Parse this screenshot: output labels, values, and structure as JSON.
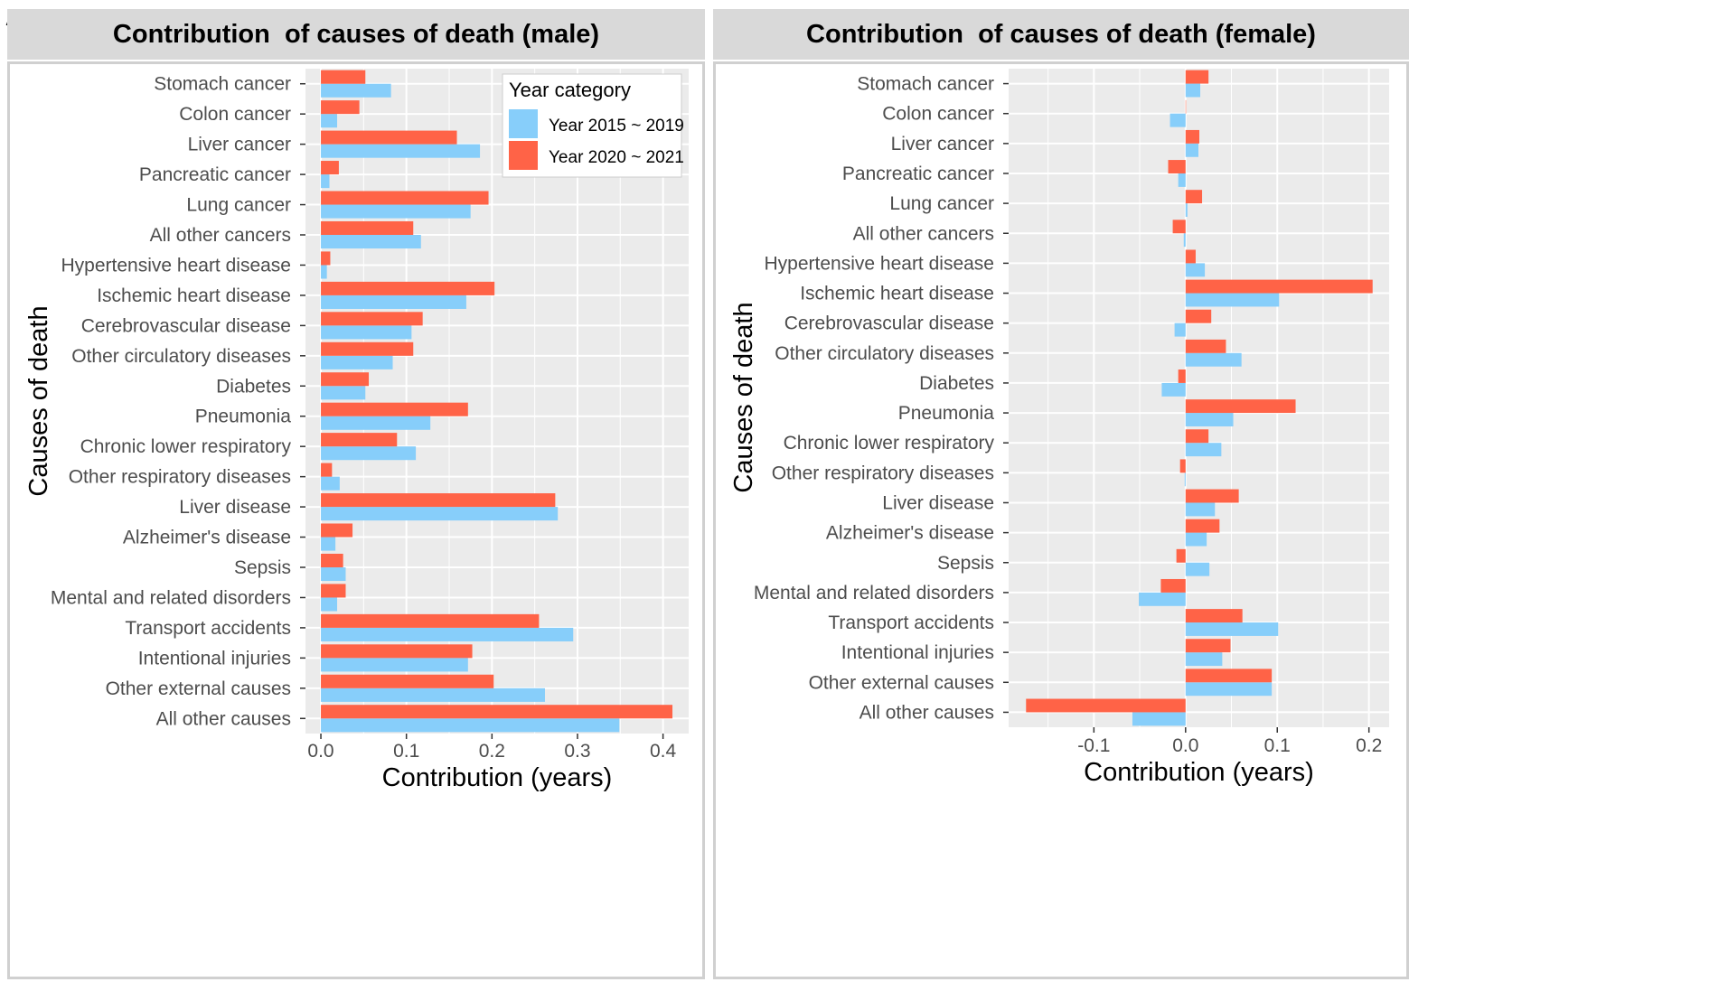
{
  "colors": {
    "series1": "#87CEFA",
    "series2": "#FF6347",
    "panel_bg": "#EBEBEB",
    "grid": "#FFFFFF"
  },
  "chart_data": [
    {
      "panel": "A",
      "type": "bar",
      "orientation": "horizontal",
      "title": "Contribution  of causes of death (male)",
      "xlabel": "Contribution (years)",
      "ylabel": "Causes of death",
      "xlim": [
        -0.018,
        0.43
      ],
      "xticks": [
        0.0,
        0.1,
        0.2,
        0.3,
        0.4
      ],
      "xtick_labels": [
        "0.0",
        "0.1",
        "0.2",
        "0.3",
        "0.4"
      ],
      "legend": {
        "title": "Year category",
        "position": "top-right",
        "entries": [
          "Year 2015 ~ 2019",
          "Year 2020 ~ 2021"
        ]
      },
      "categories": [
        "Stomach cancer",
        "Colon cancer",
        "Liver cancer",
        "Pancreatic cancer",
        "Lung cancer",
        "All other cancers",
        "Hypertensive heart disease",
        "Ischemic heart disease",
        "Cerebrovascular disease",
        "Other circulatory diseases",
        "Diabetes",
        "Pneumonia",
        "Chronic lower respiratory",
        "Other respiratory diseases",
        "Liver disease",
        "Alzheimer's disease",
        "Sepsis",
        "Mental and related disorders",
        "Transport accidents",
        "Intentional injuries",
        "Other external causes",
        "All other causes"
      ],
      "series": [
        {
          "name": "Year 2015 ~ 2019",
          "values": [
            0.082,
            0.019,
            0.186,
            0.01,
            0.175,
            0.117,
            0.007,
            0.17,
            0.106,
            0.084,
            0.052,
            0.128,
            0.111,
            0.022,
            0.277,
            0.017,
            0.029,
            0.019,
            0.295,
            0.172,
            0.262,
            0.349
          ]
        },
        {
          "name": "Year 2020 ~ 2021",
          "values": [
            0.052,
            0.045,
            0.159,
            0.021,
            0.196,
            0.108,
            0.011,
            0.203,
            0.119,
            0.108,
            0.056,
            0.172,
            0.089,
            0.013,
            0.274,
            0.037,
            0.026,
            0.029,
            0.255,
            0.177,
            0.202,
            0.411
          ]
        }
      ]
    },
    {
      "panel": "B",
      "type": "bar",
      "orientation": "horizontal",
      "title": "Contribution  of causes of death (female)",
      "xlabel": "Contribution (years)",
      "ylabel": "Causes of death",
      "xlim": [
        -0.193,
        0.222
      ],
      "xticks": [
        -0.1,
        0.0,
        0.1,
        0.2
      ],
      "xtick_labels": [
        "-0.1",
        "0.0",
        "0.1",
        "0.2"
      ],
      "categories": [
        "Stomach cancer",
        "Colon cancer",
        "Liver cancer",
        "Pancreatic cancer",
        "Lung cancer",
        "All other cancers",
        "Hypertensive heart disease",
        "Ischemic heart disease",
        "Cerebrovascular disease",
        "Other circulatory diseases",
        "Diabetes",
        "Pneumonia",
        "Chronic lower respiratory",
        "Other respiratory diseases",
        "Liver disease",
        "Alzheimer's disease",
        "Sepsis",
        "Mental and related disorders",
        "Transport accidents",
        "Intentional injuries",
        "Other external causes",
        "All other causes"
      ],
      "series": [
        {
          "name": "Year 2015 ~ 2019",
          "values": [
            0.016,
            -0.017,
            0.014,
            -0.008,
            0.002,
            -0.002,
            0.021,
            0.102,
            -0.012,
            0.061,
            -0.026,
            0.052,
            0.039,
            -0.001,
            0.032,
            0.023,
            0.026,
            -0.051,
            0.101,
            0.04,
            0.094,
            -0.058
          ]
        },
        {
          "name": "Year 2020 ~ 2021",
          "values": [
            0.025,
            0.0,
            0.015,
            -0.019,
            0.018,
            -0.014,
            0.011,
            0.204,
            0.028,
            0.044,
            -0.008,
            0.12,
            0.025,
            -0.006,
            0.058,
            0.037,
            -0.01,
            -0.027,
            0.062,
            0.049,
            0.094,
            -0.174
          ]
        }
      ]
    }
  ]
}
